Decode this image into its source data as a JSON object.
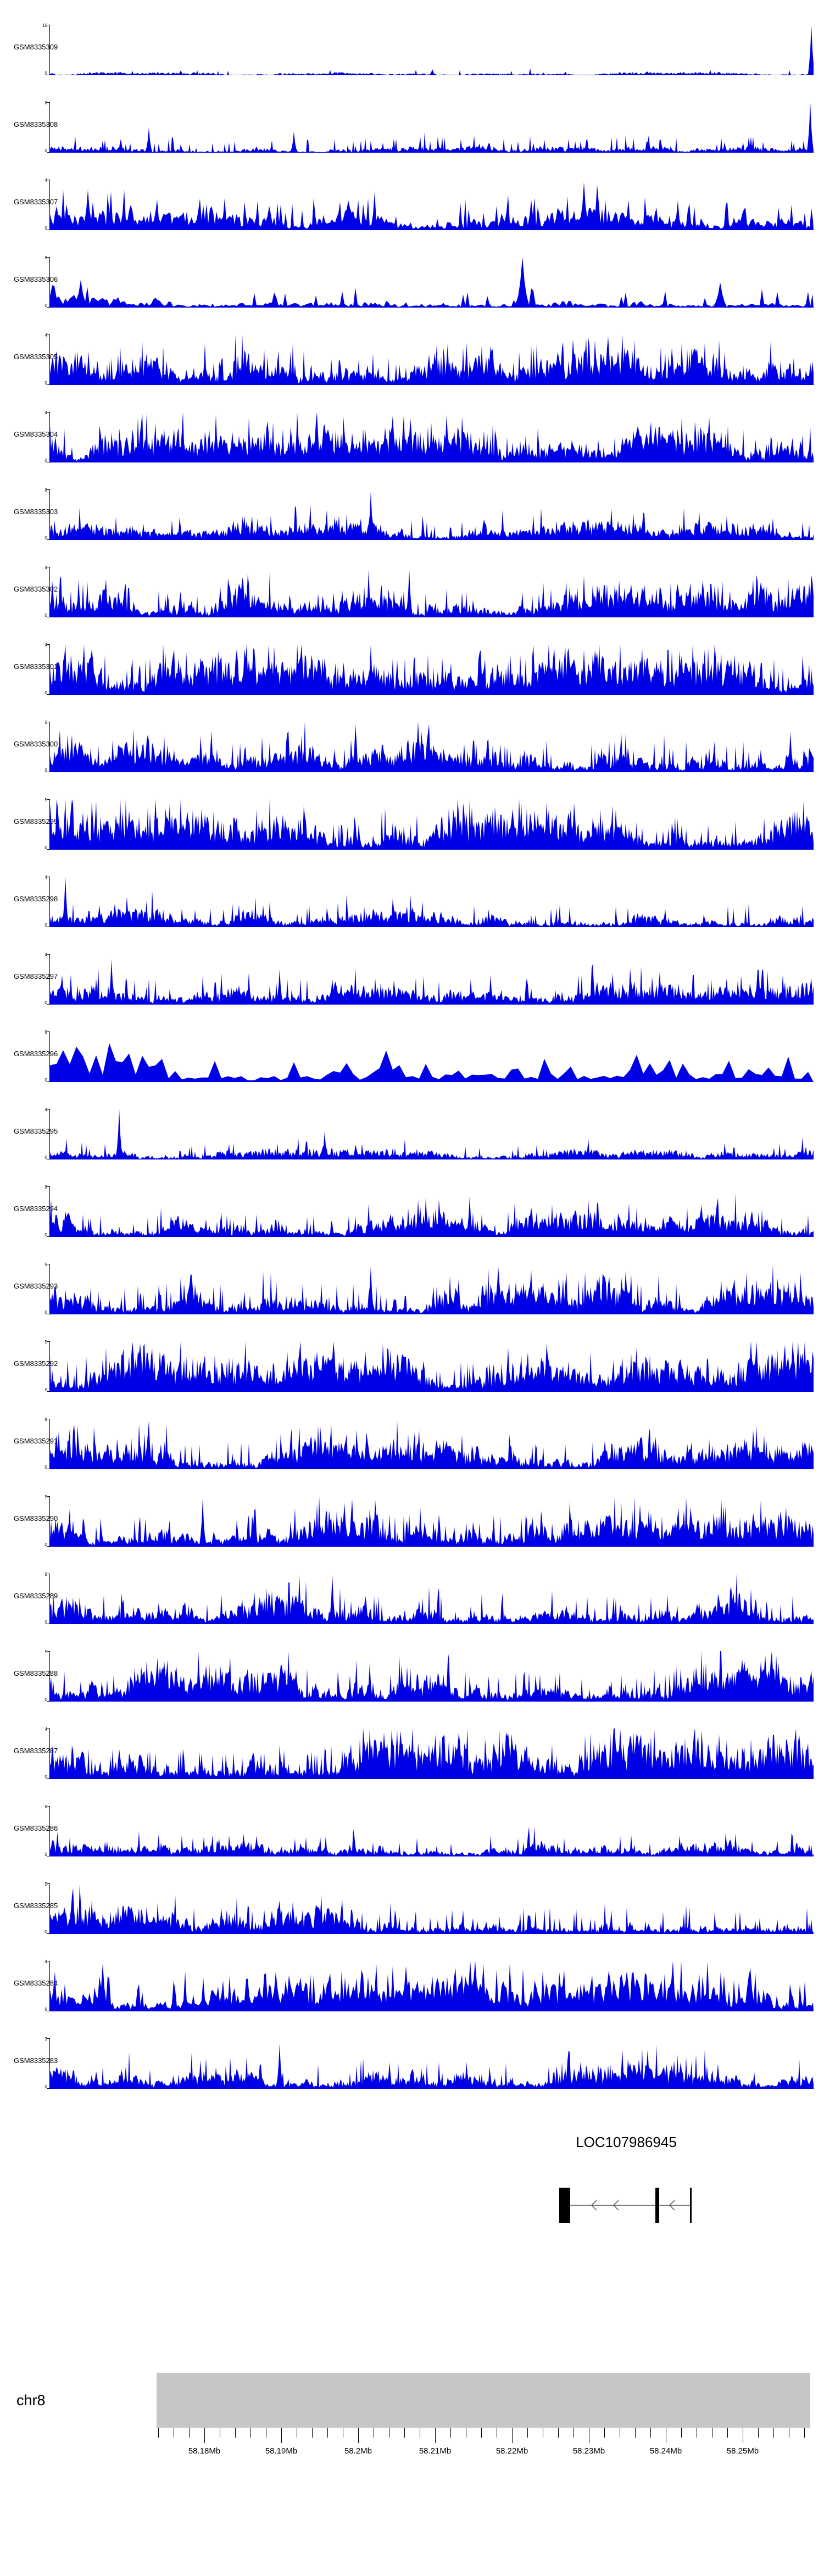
{
  "chart_data": {
    "type": "area",
    "title": "",
    "description": "Genome browser read-coverage tracks on chr8, region approx 58.17-58.26 Mb",
    "x_axis": {
      "chromosome": "chr8",
      "tick_labels": [
        "58.18Mb",
        "58.19Mb",
        "58.2Mb",
        "58.21Mb",
        "58.22Mb",
        "58.23Mb",
        "58.24Mb",
        "58.25Mb"
      ]
    },
    "tracks": [
      {
        "label": "GSM8335309",
        "ymax": 15,
        "ymin": 0,
        "seed": 101,
        "base": 0.04,
        "needle_prob": 0.03,
        "needle_max": 0.1,
        "step": 2,
        "spikes": [
          {
            "x": 0.997,
            "h": 1.0
          },
          {
            "x": 0.5,
            "h": 0.12
          }
        ]
      },
      {
        "label": "GSM8335308",
        "ymax": 8,
        "ymin": 0,
        "seed": 102,
        "base": 0.08,
        "needle_prob": 0.1,
        "needle_max": 0.28,
        "step": 2,
        "spikes": [
          {
            "x": 0.995,
            "h": 1.0
          },
          {
            "x": 0.13,
            "h": 0.5
          },
          {
            "x": 0.32,
            "h": 0.42
          }
        ]
      },
      {
        "label": "GSM8335307",
        "ymax": 4,
        "ymin": 0,
        "seed": 103,
        "base": 0.3,
        "needle_prob": 0.12,
        "needle_max": 0.5,
        "step": 3,
        "spikes": [
          {
            "x": 0.7,
            "h": 0.95
          },
          {
            "x": 0.05,
            "h": 0.8
          }
        ]
      },
      {
        "label": "GSM8335306",
        "ymax": 8,
        "ymin": 0,
        "seed": 104,
        "base": 0.17,
        "needle_prob": 0.08,
        "needle_max": 0.35,
        "step": 4,
        "spikes": [
          {
            "x": 0.62,
            "h": 1.0
          },
          {
            "x": 0.04,
            "h": 0.55
          },
          {
            "x": 0.88,
            "h": 0.5
          }
        ]
      },
      {
        "label": "GSM8335305",
        "ymax": 4,
        "ymin": 0,
        "seed": 105,
        "base": 0.44,
        "needle_prob": 0.15,
        "needle_max": 0.5,
        "step": 2,
        "spikes": []
      },
      {
        "label": "GSM8335304",
        "ymax": 4,
        "ymin": 0,
        "seed": 106,
        "base": 0.42,
        "needle_prob": 0.15,
        "needle_max": 0.5,
        "step": 2,
        "spikes": [
          {
            "x": 0.52,
            "h": 0.95
          }
        ]
      },
      {
        "label": "GSM8335303",
        "ymax": 8,
        "ymin": 0,
        "seed": 107,
        "base": 0.22,
        "needle_prob": 0.08,
        "needle_max": 0.4,
        "step": 2,
        "spikes": [
          {
            "x": 0.42,
            "h": 0.97
          }
        ]
      },
      {
        "label": "GSM8335302",
        "ymax": 4,
        "ymin": 0,
        "seed": 108,
        "base": 0.4,
        "needle_prob": 0.12,
        "needle_max": 0.5,
        "step": 2,
        "spikes": [
          {
            "x": 0.47,
            "h": 0.95
          }
        ]
      },
      {
        "label": "GSM8335301",
        "ymax": 4,
        "ymin": 0,
        "seed": 109,
        "base": 0.45,
        "needle_prob": 0.18,
        "needle_max": 0.55,
        "step": 2,
        "spikes": [
          {
            "x": 0.42,
            "h": 1.0
          }
        ]
      },
      {
        "label": "GSM8335300",
        "ymax": 5,
        "ymin": 0,
        "seed": 110,
        "base": 0.38,
        "needle_prob": 0.14,
        "needle_max": 0.5,
        "step": 2,
        "spikes": [
          {
            "x": 0.4,
            "h": 0.95
          }
        ]
      },
      {
        "label": "GSM8335299",
        "ymax": 5,
        "ymin": 0,
        "seed": 111,
        "base": 0.48,
        "needle_prob": 0.15,
        "needle_max": 0.5,
        "step": 2,
        "spikes": []
      },
      {
        "label": "GSM8335298",
        "ymax": 4,
        "ymin": 0,
        "seed": 112,
        "base": 0.22,
        "needle_prob": 0.07,
        "needle_max": 0.4,
        "step": 2,
        "spikes": [
          {
            "x": 0.02,
            "h": 1.0
          },
          {
            "x": 0.1,
            "h": 0.6
          }
        ]
      },
      {
        "label": "GSM8335297",
        "ymax": 4,
        "ymin": 0,
        "seed": 113,
        "base": 0.26,
        "needle_prob": 0.09,
        "needle_max": 0.45,
        "step": 2,
        "spikes": [
          {
            "x": 0.08,
            "h": 0.9
          },
          {
            "x": 0.3,
            "h": 0.7
          }
        ]
      },
      {
        "label": "GSM8335296",
        "ymax": 8,
        "ymin": 0,
        "seed": 114,
        "base": 0.45,
        "needle_prob": 0.25,
        "needle_max": 0.45,
        "step": 12,
        "spikes": []
      },
      {
        "label": "GSM8335295",
        "ymax": 4,
        "ymin": 0,
        "seed": 115,
        "base": 0.13,
        "needle_prob": 0.06,
        "needle_max": 0.3,
        "step": 2,
        "spikes": [
          {
            "x": 0.09,
            "h": 1.0
          },
          {
            "x": 0.36,
            "h": 0.55
          }
        ]
      },
      {
        "label": "GSM8335294",
        "ymax": 8,
        "ymin": 0,
        "seed": 116,
        "base": 0.3,
        "needle_prob": 0.1,
        "needle_max": 0.4,
        "step": 2,
        "spikes": [
          {
            "x": 0.55,
            "h": 0.8
          }
        ]
      },
      {
        "label": "GSM8335293",
        "ymax": 5,
        "ymin": 0,
        "seed": 117,
        "base": 0.38,
        "needle_prob": 0.13,
        "needle_max": 0.5,
        "step": 2,
        "spikes": [
          {
            "x": 0.42,
            "h": 0.95
          }
        ]
      },
      {
        "label": "GSM8335292",
        "ymax": 5,
        "ymin": 0,
        "seed": 118,
        "base": 0.48,
        "needle_prob": 0.16,
        "needle_max": 0.5,
        "step": 2,
        "spikes": []
      },
      {
        "label": "GSM8335291",
        "ymax": 8,
        "ymin": 0,
        "seed": 119,
        "base": 0.36,
        "needle_prob": 0.1,
        "needle_max": 0.45,
        "step": 2,
        "spikes": [
          {
            "x": 0.13,
            "h": 0.95
          }
        ]
      },
      {
        "label": "GSM8335290",
        "ymax": 5,
        "ymin": 0,
        "seed": 120,
        "base": 0.42,
        "needle_prob": 0.14,
        "needle_max": 0.5,
        "step": 2,
        "spikes": [
          {
            "x": 0.2,
            "h": 0.95
          }
        ]
      },
      {
        "label": "GSM8335289",
        "ymax": 5,
        "ymin": 0,
        "seed": 121,
        "base": 0.38,
        "needle_prob": 0.12,
        "needle_max": 0.5,
        "step": 2,
        "spikes": [
          {
            "x": 0.37,
            "h": 0.97
          }
        ]
      },
      {
        "label": "GSM8335288",
        "ymax": 5,
        "ymin": 0,
        "seed": 122,
        "base": 0.46,
        "needle_prob": 0.15,
        "needle_max": 0.5,
        "step": 2,
        "spikes": []
      },
      {
        "label": "GSM8335287",
        "ymax": 4,
        "ymin": 0,
        "seed": 123,
        "base": 0.52,
        "needle_prob": 0.18,
        "needle_max": 0.45,
        "step": 2,
        "spikes": []
      },
      {
        "label": "GSM8335286",
        "ymax": 6,
        "ymin": 0,
        "seed": 124,
        "base": 0.22,
        "needle_prob": 0.08,
        "needle_max": 0.35,
        "step": 2,
        "spikes": []
      },
      {
        "label": "GSM8335285",
        "ymax": 5,
        "ymin": 0,
        "seed": 125,
        "base": 0.33,
        "needle_prob": 0.12,
        "needle_max": 0.45,
        "step": 2,
        "spikes": [
          {
            "x": 0.03,
            "h": 0.9
          }
        ]
      },
      {
        "label": "GSM8335284",
        "ymax": 4,
        "ymin": 0,
        "seed": 126,
        "base": 0.42,
        "needle_prob": 0.16,
        "needle_max": 0.55,
        "step": 3,
        "spikes": [
          {
            "x": 0.07,
            "h": 0.95
          },
          {
            "x": 0.55,
            "h": 1.0
          }
        ]
      },
      {
        "label": "GSM8335283",
        "ymax": 3,
        "ymin": 0,
        "seed": 127,
        "base": 0.33,
        "needle_prob": 0.1,
        "needle_max": 0.45,
        "step": 2,
        "spikes": [
          {
            "x": 0.3,
            "h": 0.9
          }
        ]
      }
    ]
  },
  "gene_annotation": {
    "name": "LOC107986945",
    "strand": "-"
  },
  "ideogram": {
    "chromosome_label": "chr8"
  },
  "colors": {
    "signal": "#0000e6",
    "ideogram": "#c6c6c6",
    "gene_model": "#000000",
    "gene_line": "#555555"
  }
}
